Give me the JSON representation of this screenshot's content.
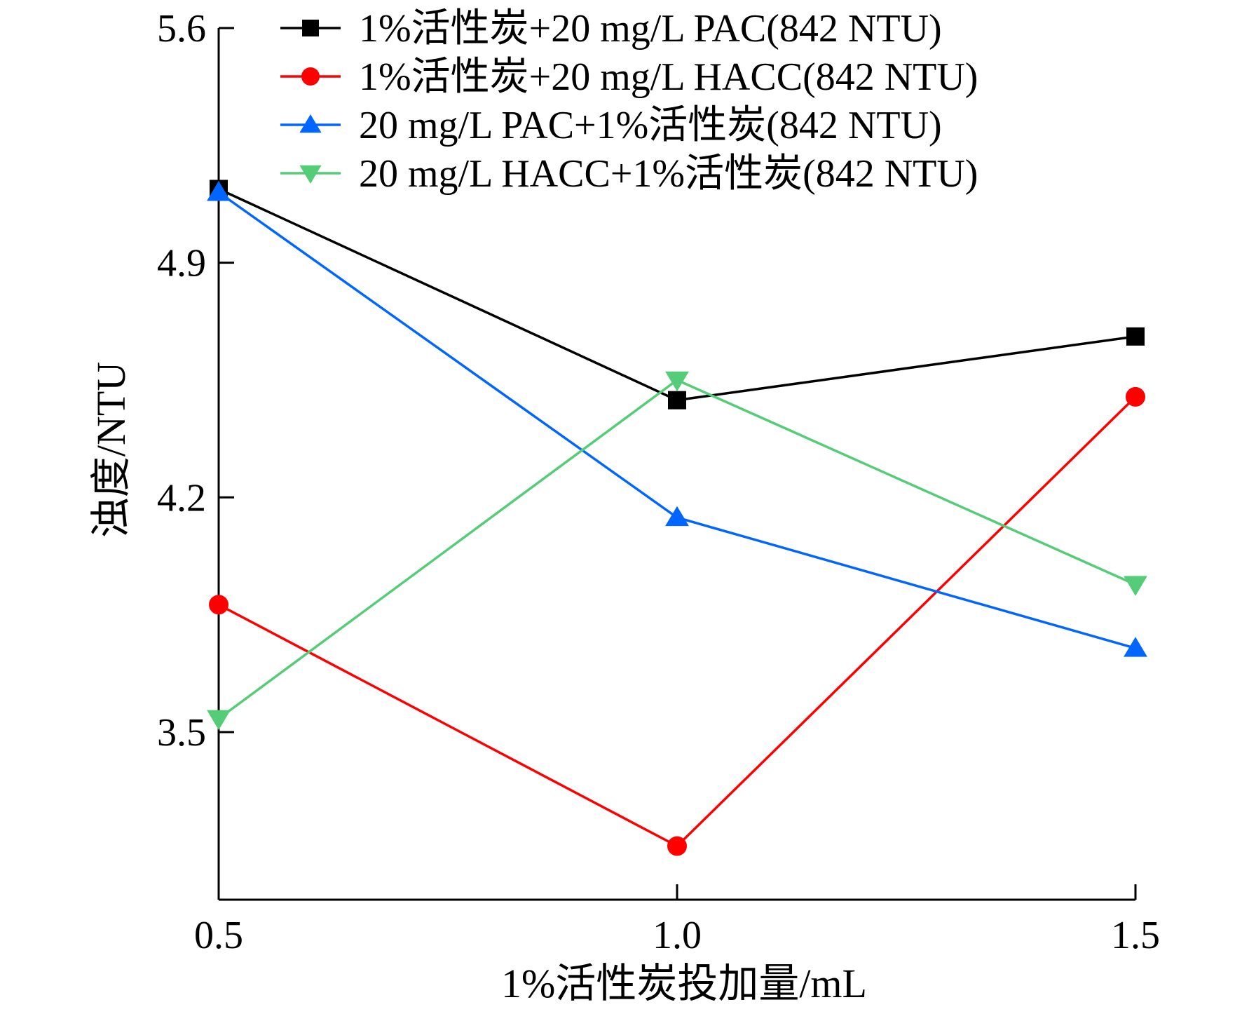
{
  "chart_data": {
    "type": "line",
    "x": [
      0.5,
      1.0,
      1.5
    ],
    "x_tick_labels": [
      "0.5",
      "1.0",
      "1.5"
    ],
    "y_ticks": [
      3.5,
      4.2,
      4.9,
      5.6
    ],
    "y_tick_labels": [
      "3.5",
      "4.2",
      "4.9",
      "5.6"
    ],
    "xlim": [
      0.5,
      1.5
    ],
    "ylim": [
      3.0,
      5.6
    ],
    "xlabel": "1%活性炭投加量/mL",
    "ylabel": "浊度/NTU",
    "grid": false,
    "legend_position": "top-right",
    "series": [
      {
        "name": "1%活性炭+20 mg/L PAC(842 NTU)",
        "values": [
          5.12,
          4.49,
          4.68
        ],
        "color": "#000000",
        "marker": "square"
      },
      {
        "name": "1%活性炭+20 mg/L HACC(842 NTU)",
        "values": [
          3.88,
          3.16,
          4.5
        ],
        "color": "#ff0000",
        "marker": "circle"
      },
      {
        "name": "20 mg/L PAC+1%活性炭(842 NTU)",
        "values": [
          5.11,
          4.14,
          3.75
        ],
        "color": "#0066ff",
        "marker": "triangle-up"
      },
      {
        "name": "20 mg/L HACC+1%活性炭(842 NTU)",
        "values": [
          3.54,
          4.55,
          3.94
        ],
        "color": "#55cc77",
        "marker": "triangle-down"
      }
    ]
  }
}
